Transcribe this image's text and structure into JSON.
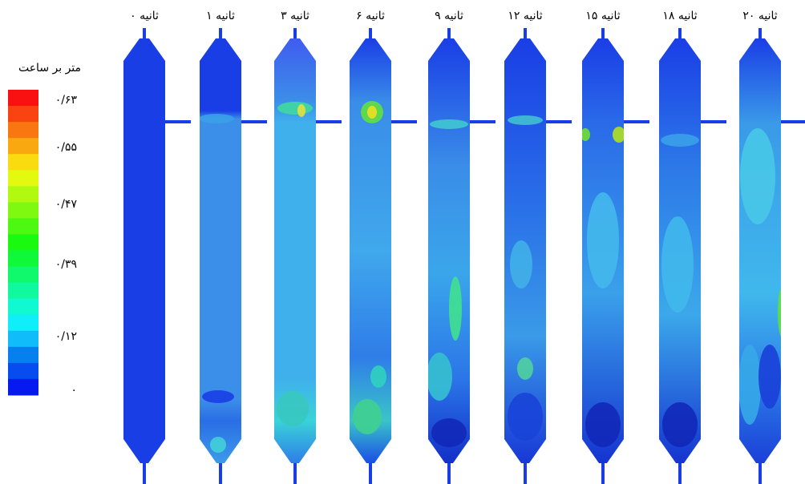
{
  "legend": {
    "title": "متر بر ساعت",
    "ticks": [
      "۰/۶۳",
      "۰/۵۵",
      "۰/۴۷",
      "۰/۳۹",
      "۰/۱۲",
      "۰"
    ]
  },
  "columns": [
    {
      "label": "ثانیه ۰"
    },
    {
      "label": "ثانیه ۱"
    },
    {
      "label": "ثانیه ۳"
    },
    {
      "label": "ثانیه ۶"
    },
    {
      "label": "ثانیه ۹"
    },
    {
      "label": "ثانیه ۱۲"
    },
    {
      "label": "ثانیه ۱۵"
    },
    {
      "label": "ثانیه ۱۸"
    },
    {
      "label": "ثانیه ۲۰"
    }
  ]
}
